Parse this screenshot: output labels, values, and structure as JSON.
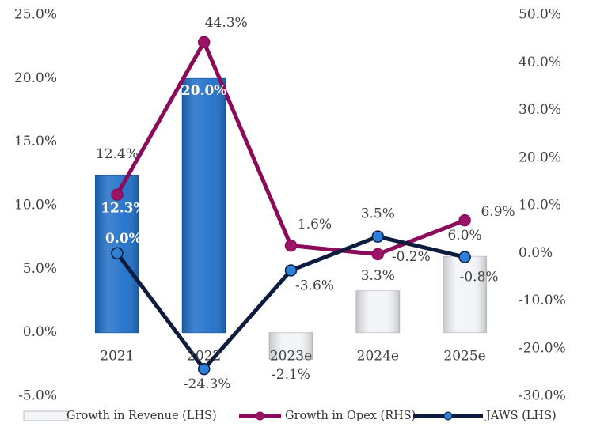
{
  "chart_data": {
    "type": "combo",
    "categories": [
      "2021",
      "2022",
      "2023e",
      "2024e",
      "2025e"
    ],
    "ylim": [
      -5,
      25
    ],
    "yticks": [
      {
        "value": -5,
        "label": "-5.0%"
      },
      {
        "value": 0,
        "label": "0.0%"
      },
      {
        "value": 5,
        "label": "5.0%"
      },
      {
        "value": 10,
        "label": "10.0%"
      },
      {
        "value": 15,
        "label": "15.0%"
      },
      {
        "value": 20,
        "label": "20.0%"
      },
      {
        "value": 25,
        "label": "25.0%"
      }
    ],
    "y2lim": [
      -30,
      50
    ],
    "y2ticks": [
      {
        "value": -30,
        "label": "-30.0%"
      },
      {
        "value": -20,
        "label": "-20.0%"
      },
      {
        "value": -10,
        "label": "-10.0%"
      },
      {
        "value": 0,
        "label": "0.0%"
      },
      {
        "value": 10,
        "label": "10.0%"
      },
      {
        "value": 20,
        "label": "20.0%"
      },
      {
        "value": 30,
        "label": "30.0%"
      },
      {
        "value": 40,
        "label": "40.0%"
      },
      {
        "value": 50,
        "label": "50.0%"
      }
    ],
    "legend": "bottom",
    "series": [
      {
        "name": "Growth in Revenue (LHS)",
        "type": "bar",
        "axis": "y",
        "color": "#f2f4f7",
        "colors": [
          "#1f6fc8",
          "#1f6fc8",
          "#f2f4f7",
          "#f2f4f7",
          "#f2f4f7"
        ],
        "values": [
          12.4,
          20.0,
          -2.1,
          3.3,
          6.0
        ],
        "value_labels": [
          "12.4%",
          "20.0%",
          "-2.1%",
          "3.3%",
          "6.0%"
        ]
      },
      {
        "name": "Growth in Opex (RHS)",
        "type": "line",
        "axis": "y2",
        "color": "#8c0a5a",
        "marker_color": "#9b1466",
        "values": [
          12.3,
          44.3,
          1.6,
          -0.2,
          6.9
        ],
        "value_labels": [
          "12.3%",
          "44.3%",
          "1.6%",
          "-0.2%",
          "6.9%"
        ]
      },
      {
        "name": "JAWS (LHS)",
        "type": "line",
        "axis": "y2",
        "color": "#0d1b3e",
        "marker_color": "#2e7fd6",
        "values": [
          0.0,
          -24.3,
          -3.6,
          3.5,
          -0.8
        ],
        "value_labels": [
          "0.0%",
          "-24.3%",
          "-3.6%",
          "3.5%",
          "-0.8%"
        ]
      }
    ]
  }
}
